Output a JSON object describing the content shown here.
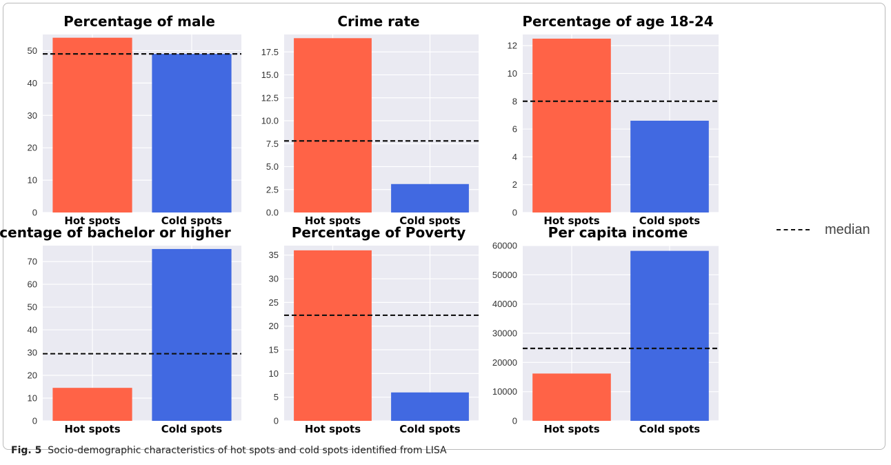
{
  "legend": {
    "median_label": "median"
  },
  "caption": {
    "label": "Fig. 5",
    "text": "Socio-demographic characteristics of hot spots and cold spots identified from LISA"
  },
  "colors": {
    "hot": "#ff6347",
    "cold": "#4169e1",
    "background": "#eaeaf2",
    "median": "#111111"
  },
  "chart_data": [
    {
      "type": "bar",
      "title": "Percentage of male",
      "categories": [
        "Hot spots",
        "Cold spots"
      ],
      "values": [
        54,
        49
      ],
      "median": 49,
      "ylim": [
        0,
        55
      ],
      "yticks": [
        0,
        10,
        20,
        30,
        40,
        50
      ],
      "ytick_labels": [
        "0",
        "10",
        "20",
        "30",
        "40",
        "50"
      ],
      "grid": true
    },
    {
      "type": "bar",
      "title": "Crime rate",
      "categories": [
        "Hot spots",
        "Cold spots"
      ],
      "values": [
        19,
        3.1
      ],
      "median": 7.8,
      "ylim": [
        0,
        19.4
      ],
      "yticks": [
        0,
        2.5,
        5,
        7.5,
        10,
        12.5,
        15,
        17.5
      ],
      "ytick_labels": [
        "0.0",
        "2.5",
        "5.0",
        "7.5",
        "10.0",
        "12.5",
        "15.0",
        "17.5"
      ],
      "grid": true
    },
    {
      "type": "bar",
      "title": "Percentage of age 18-24",
      "categories": [
        "Hot spots",
        "Cold spots"
      ],
      "values": [
        12.5,
        6.6
      ],
      "median": 8,
      "ylim": [
        0,
        12.8
      ],
      "yticks": [
        0,
        2,
        4,
        6,
        8,
        10,
        12
      ],
      "ytick_labels": [
        "0",
        "2",
        "4",
        "6",
        "8",
        "10",
        "12"
      ],
      "grid": true
    },
    {
      "type": "bar",
      "title": "Percentage of bachelor or higher",
      "categories": [
        "Hot spots",
        "Cold spots"
      ],
      "values": [
        14.5,
        75.5
      ],
      "median": 29.5,
      "ylim": [
        0,
        77
      ],
      "yticks": [
        0,
        10,
        20,
        30,
        40,
        50,
        60,
        70
      ],
      "ytick_labels": [
        "0",
        "10",
        "20",
        "30",
        "40",
        "50",
        "60",
        "70"
      ],
      "grid": true
    },
    {
      "type": "bar",
      "title": "Percentage of Poverty",
      "categories": [
        "Hot spots",
        "Cold spots"
      ],
      "values": [
        36,
        6
      ],
      "median": 22.3,
      "ylim": [
        0,
        37
      ],
      "yticks": [
        0,
        5,
        10,
        15,
        20,
        25,
        30,
        35
      ],
      "ytick_labels": [
        "0",
        "5",
        "10",
        "15",
        "20",
        "25",
        "30",
        "35"
      ],
      "grid": true
    },
    {
      "type": "bar",
      "title": "Per capita income",
      "categories": [
        "Hot spots",
        "Cold spots"
      ],
      "values": [
        16200,
        58200
      ],
      "median": 24800,
      "ylim": [
        0,
        60000
      ],
      "yticks": [
        0,
        10000,
        20000,
        30000,
        40000,
        50000,
        60000
      ],
      "ytick_labels": [
        "0",
        "10000",
        "20000",
        "30000",
        "40000",
        "50000",
        "60000"
      ],
      "grid": true
    }
  ]
}
